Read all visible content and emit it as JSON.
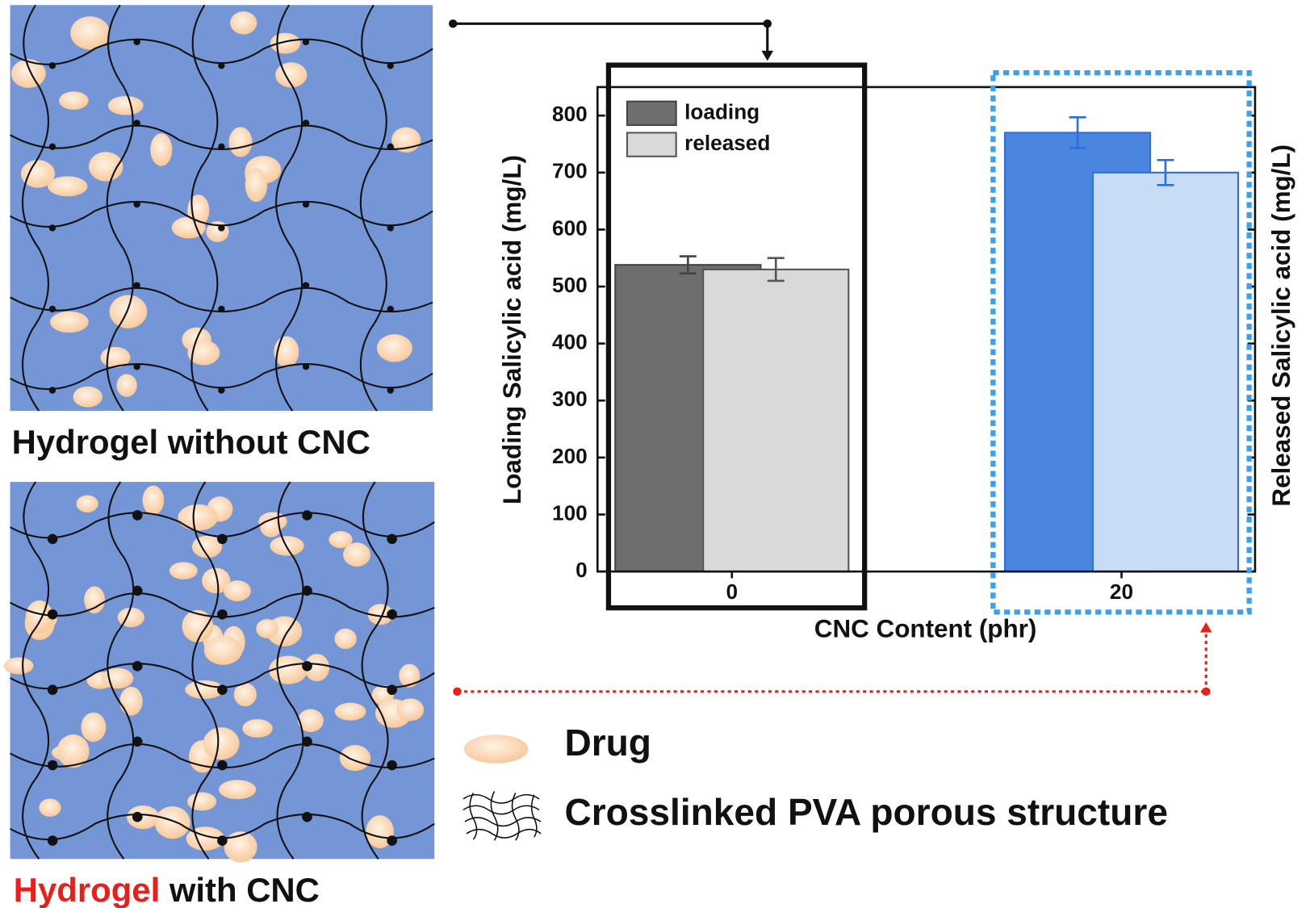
{
  "chart_data": {
    "type": "bar",
    "categories": [
      "0",
      "20"
    ],
    "series": [
      {
        "name": "loading",
        "values": [
          538,
          770
        ],
        "errors": [
          15,
          27
        ],
        "colors": [
          "#6e6e6e",
          "#4a86e0"
        ],
        "strokes": [
          "#444444",
          "#2e6fd6"
        ]
      },
      {
        "name": "released",
        "values": [
          530,
          700
        ],
        "errors": [
          20,
          22
        ],
        "colors": [
          "#d9d9d9",
          "#c9dcf5"
        ],
        "strokes": [
          "#555555",
          "#2e6fd6"
        ]
      }
    ],
    "ylim": [
      0,
      850
    ],
    "yticks": [
      0,
      100,
      200,
      300,
      400,
      500,
      600,
      700,
      800
    ],
    "xlabel": "CNC Content (phr)",
    "ylabel": "Loading Salicylic acid (mg/L)",
    "y2label": "Released Salicylic acid (mg/L)",
    "grid": false
  },
  "illustrations": {
    "top_caption": "Hydrogel without CNC",
    "bottom_caption_red": "Hydrogel",
    "bottom_caption": "with CNC"
  },
  "notes": {
    "drug": "Drug",
    "network": "Crosslinked PVA porous structure"
  }
}
